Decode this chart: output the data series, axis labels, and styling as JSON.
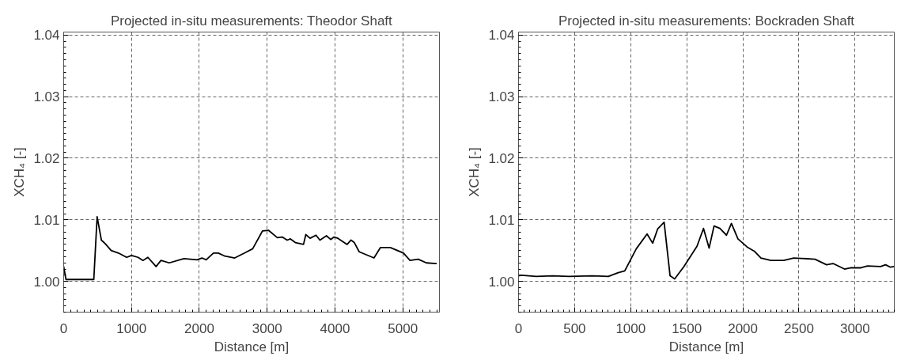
{
  "chart_data": [
    {
      "type": "line",
      "title": "Projected in-situ measurements: Theodor Shaft",
      "xlabel": "Distance [m]",
      "ylabel": "XCH₄ [-]",
      "x": [
        0,
        34,
        444,
        493,
        556,
        614,
        700,
        807,
        928,
        1000,
        1097,
        1169,
        1242,
        1362,
        1435,
        1556,
        1773,
        1966,
        2039,
        2101,
        2208,
        2280,
        2377,
        2522,
        2667,
        2787,
        2932,
        3019,
        3150,
        3222,
        3295,
        3343,
        3415,
        3536,
        3570,
        3633,
        3720,
        3778,
        3874,
        3937,
        3986,
        4043,
        4179,
        4237,
        4285,
        4357,
        4575,
        4671,
        4816,
        5010,
        5106,
        5227,
        5348,
        5493
      ],
      "values": [
        1.0024,
        1.0003,
        1.0003,
        1.0105,
        1.0067,
        1.0061,
        1.005,
        1.0046,
        1.0039,
        1.0042,
        1.0039,
        1.0034,
        1.0039,
        1.0024,
        1.0034,
        1.003,
        1.0037,
        1.0035,
        1.0038,
        1.0035,
        1.0046,
        1.0046,
        1.0041,
        1.0038,
        1.0046,
        1.0053,
        1.0082,
        1.0083,
        1.0071,
        1.0072,
        1.0067,
        1.0069,
        1.0063,
        1.006,
        1.0076,
        1.007,
        1.0075,
        1.0067,
        1.0074,
        1.0068,
        1.0072,
        1.007,
        1.006,
        1.0067,
        1.0063,
        1.0048,
        1.0038,
        1.0055,
        1.0055,
        1.0046,
        1.0034,
        1.0036,
        1.003,
        1.0029
      ],
      "color": "#000000",
      "line_style": "solid",
      "marker": "none",
      "grid": true,
      "xlim": [
        0,
        5540
      ],
      "ylim": [
        0.995,
        1.0405
      ],
      "xticks": [
        0,
        1000,
        2000,
        3000,
        4000,
        5000
      ],
      "yticks": [
        {
          "value": 1.0,
          "label": "1.00"
        },
        {
          "value": 1.01,
          "label": "1.01"
        },
        {
          "value": 1.02,
          "label": "1.02"
        },
        {
          "value": 1.03,
          "label": "1.03"
        },
        {
          "value": 1.04,
          "label": "1.04"
        }
      ]
    },
    {
      "type": "line",
      "title": "Projected in-situ measurements: Bockraden Shaft",
      "xlabel": "Distance [m]",
      "ylabel": "XCH₄ [-]",
      "x": [
        0,
        26,
        158,
        304,
        450,
        655,
        801,
        889,
        947,
        1050,
        1146,
        1196,
        1240,
        1298,
        1351,
        1392,
        1474,
        1591,
        1649,
        1699,
        1743,
        1795,
        1854,
        1898,
        1956,
        2044,
        2102,
        2161,
        2249,
        2365,
        2453,
        2643,
        2746,
        2804,
        2906,
        2965,
        3053,
        3111,
        3228,
        3272,
        3316,
        3345
      ],
      "values": [
        1.0009,
        1.001,
        1.0008,
        1.0009,
        1.0008,
        1.0009,
        1.0008,
        1.0014,
        1.0017,
        1.0053,
        1.0077,
        1.0062,
        1.0085,
        1.0096,
        1.0009,
        1.0004,
        1.0024,
        1.0057,
        1.0086,
        1.0054,
        1.009,
        1.0086,
        1.0075,
        1.0094,
        1.0069,
        1.0055,
        1.0049,
        1.0038,
        1.0034,
        1.0034,
        1.0038,
        1.0036,
        1.0027,
        1.0029,
        1.002,
        1.0022,
        1.0022,
        1.0025,
        1.0024,
        1.0027,
        1.0023,
        1.0024
      ],
      "color": "#000000",
      "line_style": "solid",
      "marker": "none",
      "grid": true,
      "xlim": [
        0,
        3350
      ],
      "ylim": [
        0.995,
        1.0405
      ],
      "xticks": [
        0,
        500,
        1000,
        1500,
        2000,
        2500,
        3000
      ],
      "yticks": [
        {
          "value": 1.0,
          "label": "1.00"
        },
        {
          "value": 1.01,
          "label": "1.01"
        },
        {
          "value": 1.02,
          "label": "1.02"
        },
        {
          "value": 1.03,
          "label": "1.03"
        },
        {
          "value": 1.04,
          "label": "1.04"
        }
      ]
    }
  ]
}
